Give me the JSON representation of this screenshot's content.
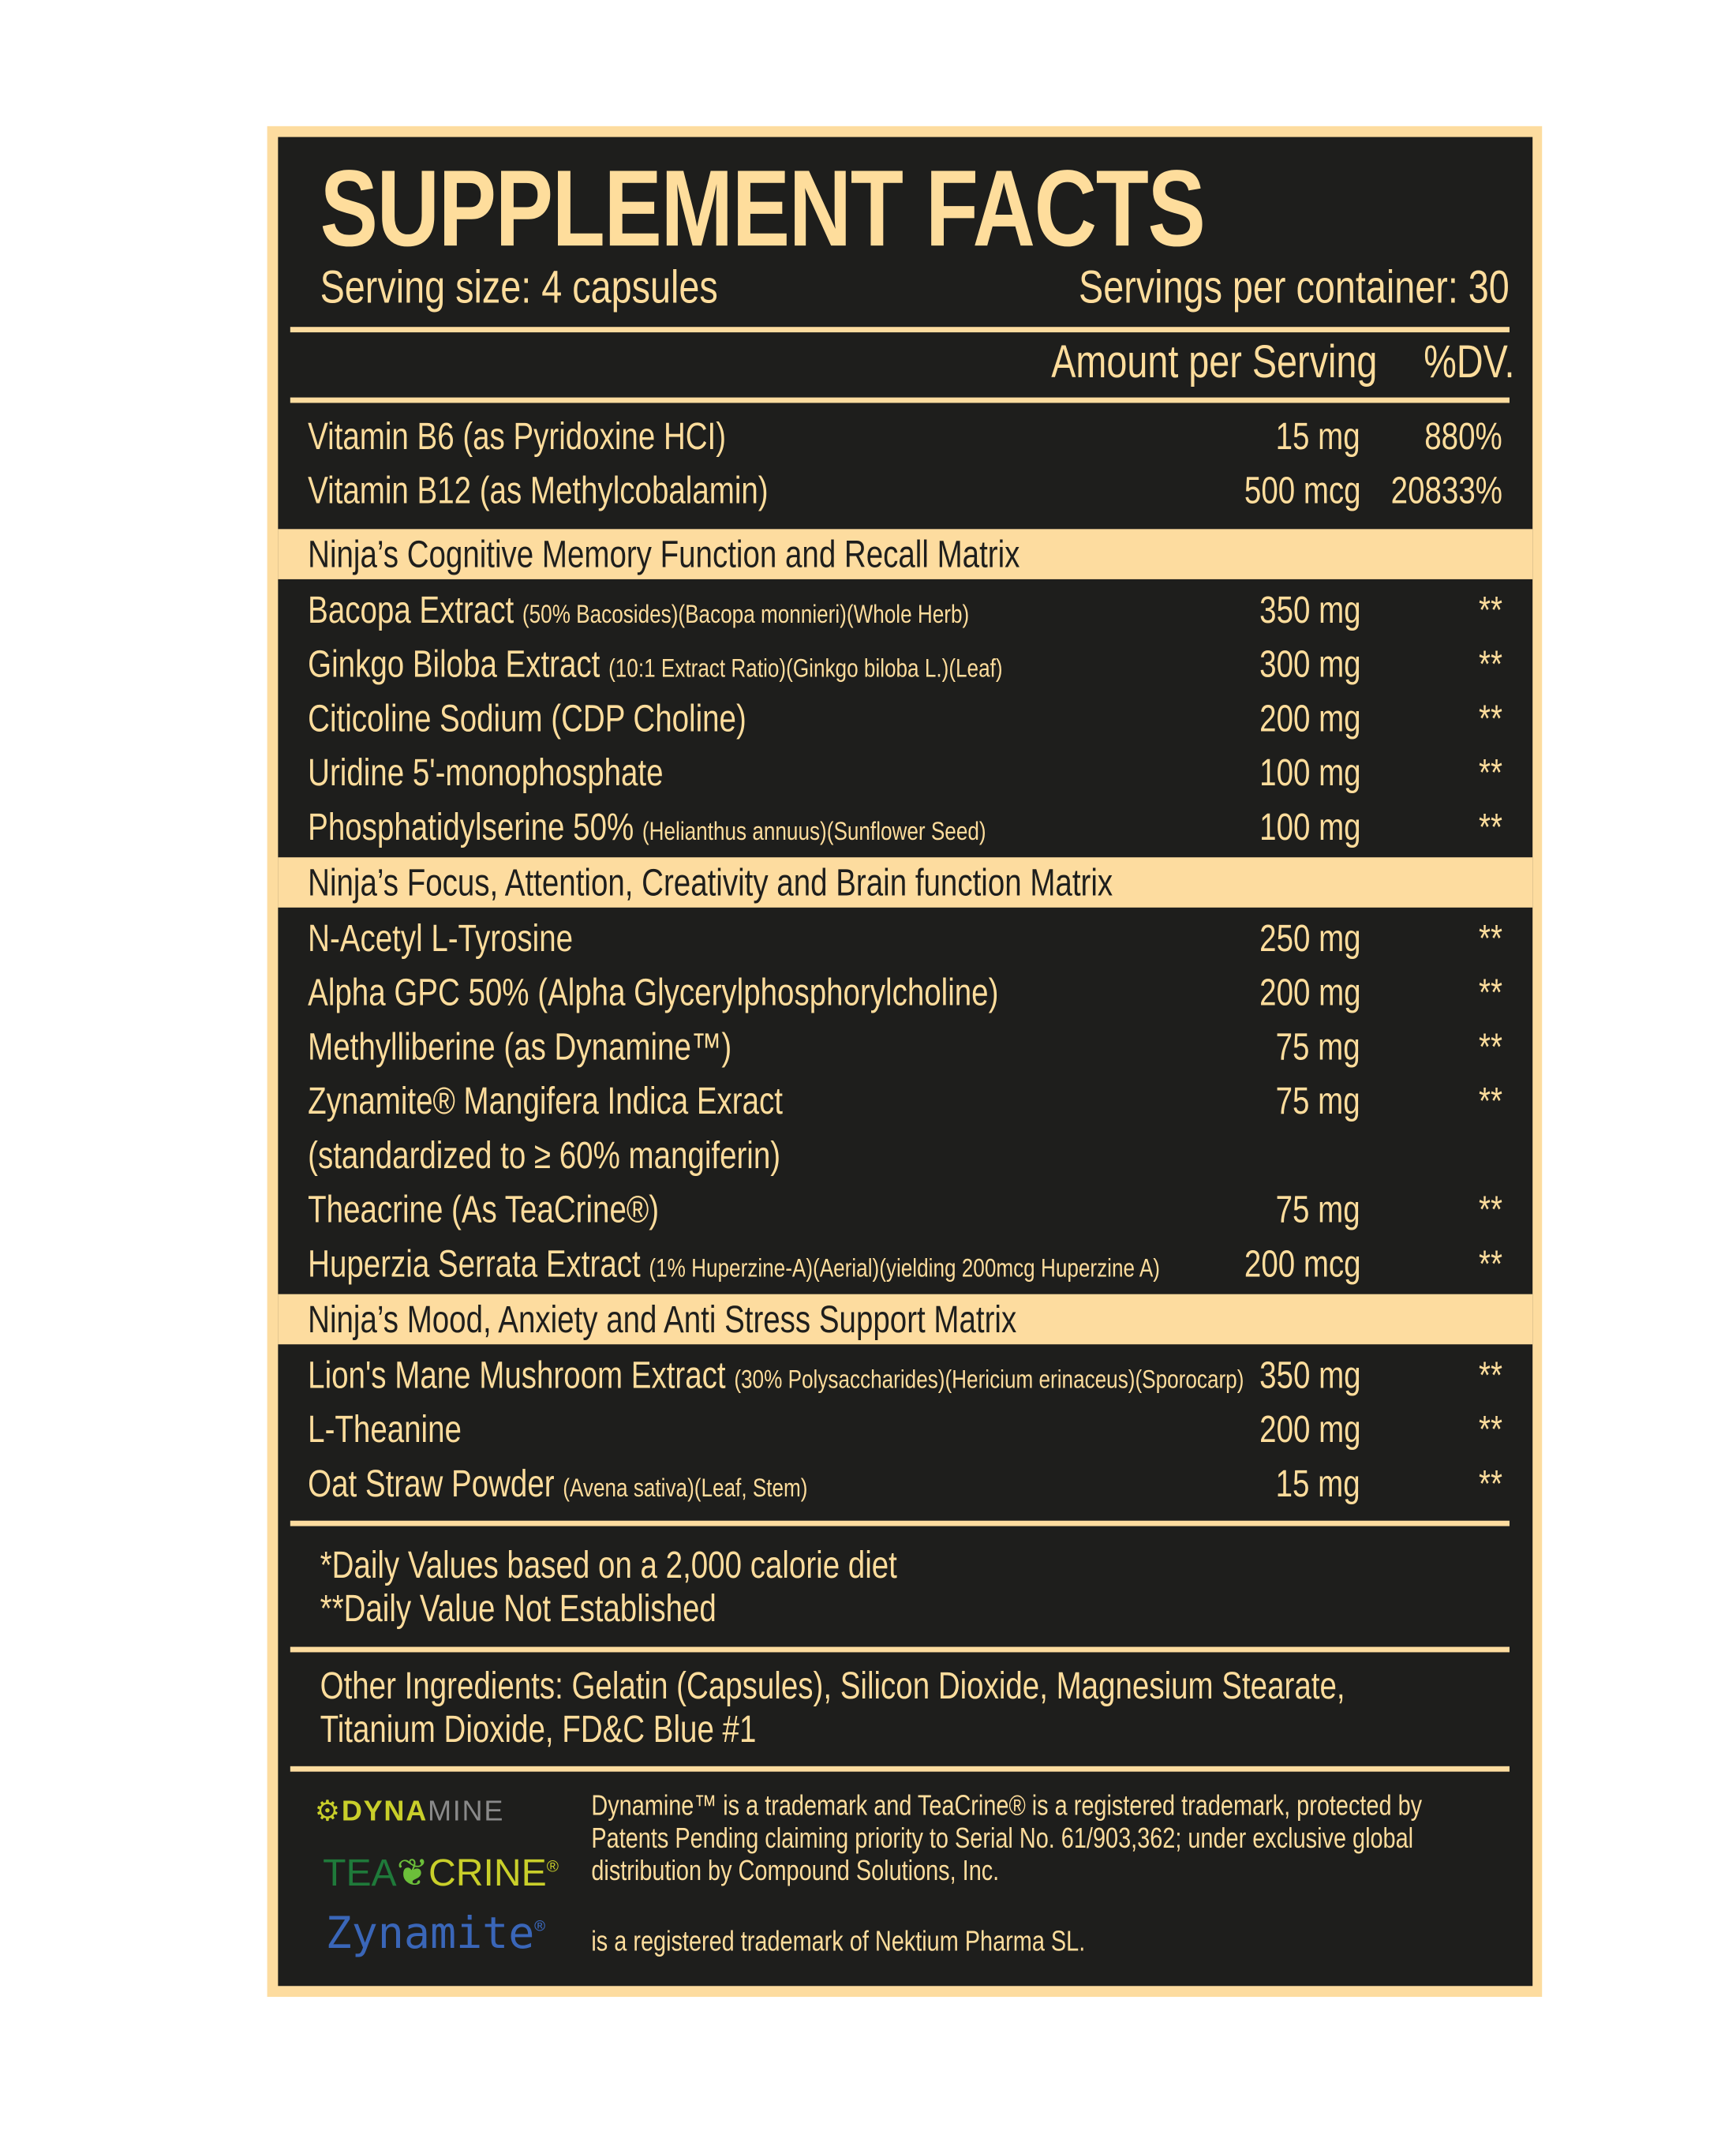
{
  "title": "SUPPLEMENT FACTS",
  "serving_size": "Serving size: 4 capsules",
  "servings_per_container": "Servings per container: 30",
  "header": {
    "amount": "Amount per Serving",
    "dv": "%DV."
  },
  "colors": {
    "background": "#1e1e1c",
    "text": "#fedd9c",
    "band": "#fddc9f"
  },
  "vitamins": [
    {
      "name": "Vitamin B6 (as Pyridoxine HCI)",
      "detail": "",
      "amount": "15 mg",
      "dv": "880%"
    },
    {
      "name": "Vitamin B12 (as Methylcobalamin)",
      "detail": "",
      "amount": "500 mcg",
      "dv": "20833%"
    }
  ],
  "sections": [
    {
      "title": "Ninja’s Cognitive Memory Function and Recall Matrix",
      "rows": [
        {
          "name": "Bacopa Extract",
          "detail": "(50% Bacosides)(Bacopa monnieri)(Whole Herb)",
          "amount": "350 mg",
          "dv": "**"
        },
        {
          "name": "Ginkgo Biloba Extract",
          "detail": "(10:1 Extract Ratio)(Ginkgo biloba L.)(Leaf)",
          "amount": "300 mg",
          "dv": "**"
        },
        {
          "name": "Citicoline Sodium (CDP Choline)",
          "detail": "",
          "amount": "200 mg",
          "dv": "**"
        },
        {
          "name": "Uridine 5'-monophosphate",
          "detail": "",
          "amount": "100 mg",
          "dv": "**"
        },
        {
          "name": "Phosphatidylserine 50%",
          "detail": "(Helianthus annuus)(Sunflower Seed)",
          "amount": "100 mg",
          "dv": "**"
        }
      ]
    },
    {
      "title": "Ninja’s Focus, Attention, Creativity and Brain function Matrix",
      "rows": [
        {
          "name": "N-Acetyl L-Tyrosine",
          "detail": "",
          "amount": "250 mg",
          "dv": "**"
        },
        {
          "name": "Alpha GPC 50% (Alpha Glycerylphosphorylcholine)",
          "detail": "",
          "amount": "200 mg",
          "dv": "**"
        },
        {
          "name": "Methylliberine (as Dynamine™)",
          "detail": "",
          "amount": "75 mg",
          "dv": "**"
        },
        {
          "name": "Zynamite® Mangifera Indica Exract",
          "detail": "",
          "amount": "75 mg",
          "dv": "**"
        },
        {
          "name": "(standardized to ≥ 60% mangiferin)",
          "detail": "",
          "amount": "",
          "dv": ""
        },
        {
          "name": "Theacrine (As TeaCrine®)",
          "detail": "",
          "amount": "75 mg",
          "dv": "**"
        },
        {
          "name": "Huperzia Serrata Extract",
          "detail": "(1% Huperzine-A)(Aerial)(yielding 200mcg Huperzine A)",
          "amount": "200 mcg",
          "dv": "**"
        }
      ]
    },
    {
      "title": "Ninja’s Mood, Anxiety and Anti Stress Support Matrix",
      "rows": [
        {
          "name": "Lion's Mane Mushroom Extract",
          "detail": "(30% Polysaccharides)(Hericium erinaceus)(Sporocarp)",
          "amount": "350 mg",
          "dv": "**"
        },
        {
          "name": "L-Theanine",
          "detail": "",
          "amount": "200 mg",
          "dv": "**"
        },
        {
          "name": "Oat Straw Powder",
          "detail": "(Avena sativa)(Leaf, Stem)",
          "amount": "15 mg",
          "dv": "**"
        }
      ]
    }
  ],
  "footnotes": [
    "*Daily Values based on a 2,000 calorie diet",
    "**Daily Value Not Established"
  ],
  "other_ingredients": [
    "Other Ingredients: Gelatin (Capsules), Silicon Dioxide, Magnesium Stearate,",
    "Titanium Dioxide, FD&C Blue #1"
  ],
  "trademarks": {
    "lines": [
      "Dynamine™ is a trademark and TeaCrine® is a registered trademark, protected by",
      "Patents Pending claiming priority to Serial No. 61/903,362; under exclusive global",
      "distribution by Compound Solutions, Inc."
    ],
    "zynamite_line": "is a registered trademark of Nektium Pharma SL.",
    "logos": {
      "dynamine": "DYNAMINE",
      "teacrine": "TEACRINE",
      "zynamite": "Zynamite®"
    }
  }
}
